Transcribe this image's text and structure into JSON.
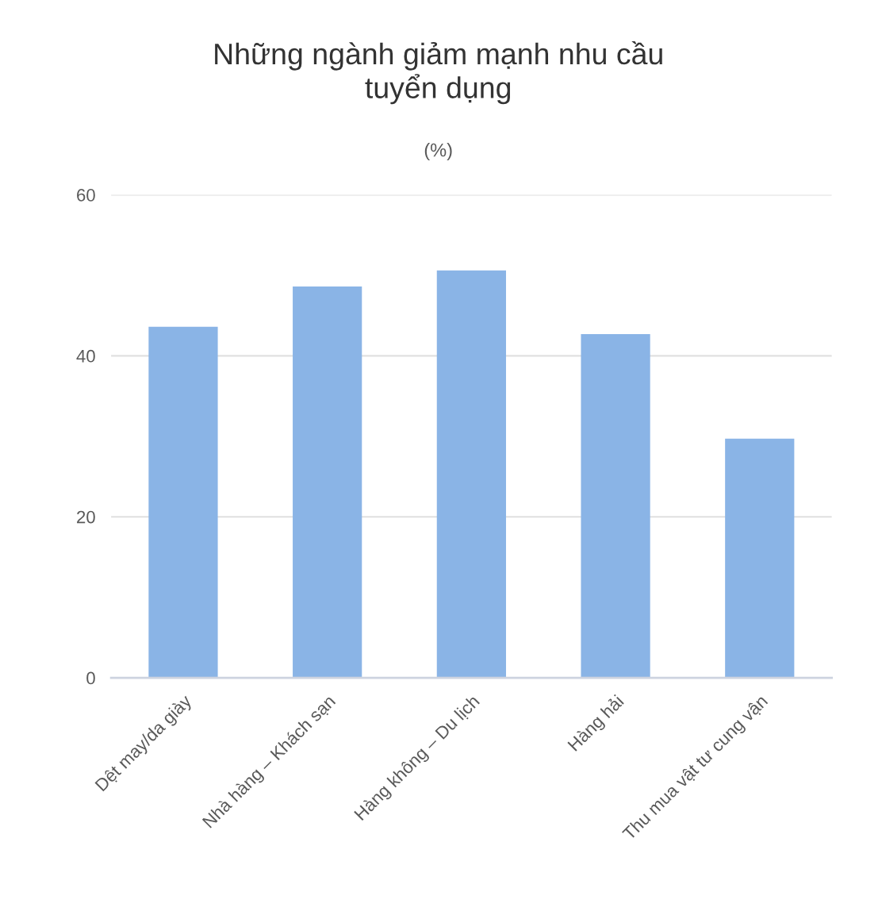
{
  "chart_data": {
    "type": "bar",
    "title": "Những ngành giảm mạnh nhu cầu\ntuyển dụng",
    "subtitle": "(%)",
    "categories": [
      "Dệt may/da giày",
      "Nhà hàng – Khách sạn",
      "Hàng không – Du lịch",
      "Hàng hải",
      "Thu mua vật tư cung vận"
    ],
    "values": [
      43.6,
      48.6,
      50.6,
      42.7,
      29.7
    ],
    "color": "#8ab4e6",
    "ylim": [
      0,
      60
    ],
    "yticks": [
      0,
      20,
      40,
      60
    ],
    "grid": "y",
    "legend": false
  }
}
